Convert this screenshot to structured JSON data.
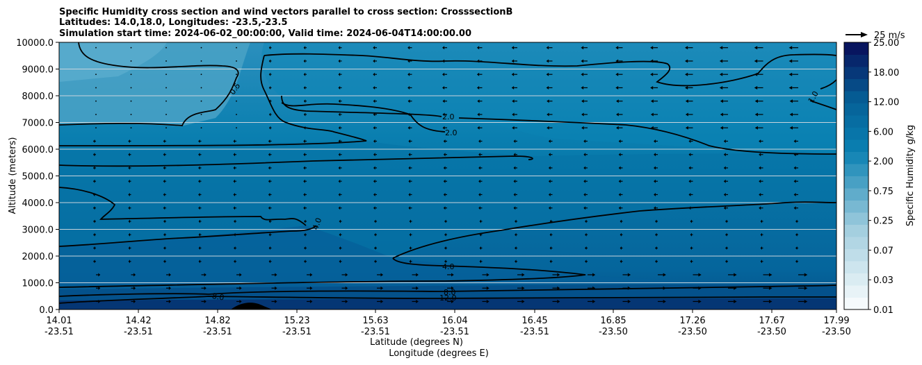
{
  "chart_data": {
    "type": "heatmap",
    "title_lines": [
      "Specific Humidity cross section and wind vectors parallel to cross section: CrosssectionB",
      "Latitudes: 14.0,18.0, Longitudes: -23.5,-23.5",
      "Simulation start time: 2024-06-02_00:00:00, Valid time: 2024-06-04T14:00:00.00"
    ],
    "ylabel": "Altitude (meters)",
    "xlabel": "Latitude (degrees N)",
    "xlabel2": "Longitude (degrees E)",
    "ylim": [
      0,
      10000
    ],
    "y_ticks": [
      "0.0",
      "1000.0",
      "2000.0",
      "3000.0",
      "4000.0",
      "5000.0",
      "6000.0",
      "7000.0",
      "8000.0",
      "9000.0",
      "10000.0"
    ],
    "x_ticks_lat": [
      "14.01",
      "14.42",
      "14.82",
      "15.23",
      "15.63",
      "16.04",
      "16.45",
      "16.85",
      "17.26",
      "17.67",
      "17.99"
    ],
    "x_ticks_lon": [
      "-23.51",
      "-23.51",
      "-23.51",
      "-23.51",
      "-23.51",
      "-23.51",
      "-23.51",
      "-23.50",
      "-23.50",
      "-23.50",
      "-23.50"
    ],
    "colorbar_label": "Specific Humidity g/kg",
    "colorbar_ticks": [
      "0.01",
      "0.03",
      "0.07",
      "0.25",
      "0.75",
      "2.00",
      "6.00",
      "12.00",
      "18.00",
      "25.00"
    ],
    "quiver_key": "25 m/s",
    "contour_labels": [
      "0.5",
      "1.0",
      "2.0",
      "2.0",
      "4.0",
      "4.0",
      "8.0",
      "8.0",
      "12.0"
    ],
    "colors": {
      "cbar_low": "#f5fafc",
      "cbar_high": "#08155f",
      "band_upper": "#52a6c8",
      "band_mid": "#0b7fae",
      "band_low": "#055f96",
      "band_surface": "#06306e"
    }
  }
}
